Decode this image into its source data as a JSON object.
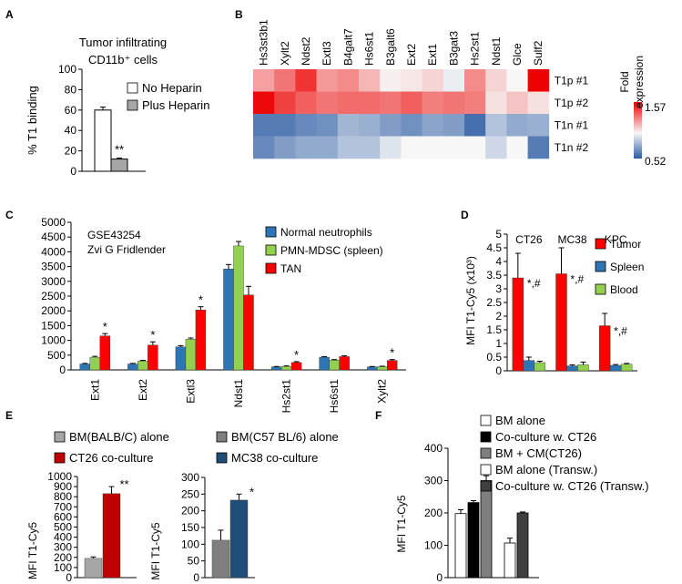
{
  "colors": {
    "white_bar": "#ffffff",
    "gray_bar": "#a6a6a6",
    "blue": "#2e75b6",
    "green": "#92d050",
    "red": "#ff0000",
    "dark_red": "#c00000",
    "dark_gray": "#7f7f7f",
    "navy": "#1f4e79",
    "black": "#000000",
    "dark_gray2": "#404040",
    "heat_low": "#2c5ca3",
    "heat_mid": "#f7f7f7",
    "heat_high": "#ee0000"
  },
  "chart_data": [
    {
      "panel": "A",
      "type": "bar",
      "title": "Tumor infiltrating\nCD11b⁺ cells",
      "ylabel": "% T1 binding",
      "ylim": [
        0,
        100
      ],
      "yticks": [
        0,
        20,
        40,
        60,
        80,
        100
      ],
      "categories": [
        "No Heparin",
        "Plus Heparin"
      ],
      "values": [
        60,
        12
      ],
      "errors": [
        3,
        1
      ],
      "bar_colors": [
        "#ffffff",
        "#a6a6a6"
      ],
      "legend": [
        "No Heparin",
        "Plus Heparin"
      ],
      "annotations": [
        {
          "category": "Plus Heparin",
          "text": "**"
        }
      ]
    },
    {
      "panel": "B",
      "type": "heatmap",
      "columns": [
        "Hs3st3b1",
        "Xylt2",
        "Ndst2",
        "Extl3",
        "B4galt7",
        "Hs6st1",
        "B3galt6",
        "Ext2",
        "Ext1",
        "B3gat3",
        "Hs2st1",
        "Ndst1",
        "Glce",
        "Sulf2"
      ],
      "rows": [
        "T1p #1",
        "T1p #2",
        "T1n #1",
        "T1n #2"
      ],
      "values": [
        [
          1.2,
          1.3,
          1.45,
          1.22,
          1.25,
          1.15,
          1.02,
          1.04,
          1.08,
          0.97,
          1.25,
          1.08,
          1.0,
          1.57
        ],
        [
          1.55,
          1.42,
          1.35,
          1.3,
          1.32,
          1.32,
          1.3,
          1.35,
          1.28,
          1.3,
          1.28,
          1.05,
          1.12,
          1.05
        ],
        [
          0.62,
          0.62,
          0.66,
          0.68,
          0.8,
          0.78,
          0.72,
          0.68,
          0.74,
          0.72,
          0.58,
          0.84,
          0.76,
          0.78
        ],
        [
          0.66,
          0.72,
          0.76,
          0.76,
          0.84,
          0.84,
          0.94,
          1.0,
          1.0,
          1.0,
          1.0,
          0.9,
          1.0,
          0.62
        ]
      ],
      "colorbar": {
        "title": "Fold\nexpression",
        "max_label": "1.57",
        "min_label": "0.52",
        "vmin": 0.52,
        "vmax": 1.57
      }
    },
    {
      "panel": "C",
      "type": "bar",
      "annotation_text": [
        "GSE43254",
        "Zvi G Fridlender"
      ],
      "ylim": [
        0,
        5000
      ],
      "yticks": [
        0,
        500,
        1000,
        1500,
        2000,
        2500,
        3000,
        3500,
        4000,
        4500,
        5000
      ],
      "categories": [
        "Ext1",
        "Ext2",
        "Extl3",
        "Ndst1",
        "Hs2st1",
        "Hs6st1",
        "Xylt2"
      ],
      "series": [
        {
          "name": "Normal neutrophils",
          "color": "#2e75b6",
          "values": [
            200,
            200,
            780,
            3420,
            100,
            430,
            100
          ],
          "errors": [
            20,
            20,
            40,
            150,
            15,
            20,
            15
          ]
        },
        {
          "name": "PMN-MDSC (spleen)",
          "color": "#92d050",
          "values": [
            430,
            300,
            1040,
            4200,
            120,
            330,
            110
          ],
          "errors": [
            30,
            25,
            40,
            150,
            15,
            20,
            15
          ]
        },
        {
          "name": "TAN",
          "color": "#ff0000",
          "values": [
            1150,
            840,
            2030,
            2540,
            250,
            450,
            320
          ],
          "errors": [
            80,
            110,
            110,
            290,
            30,
            30,
            30
          ]
        }
      ],
      "stars": [
        "*",
        "*",
        "*",
        "",
        "*",
        "",
        "*"
      ]
    },
    {
      "panel": "D",
      "type": "bar",
      "ylabel": "MFI T1-Cy5 (x10³)",
      "ylim": [
        0,
        5
      ],
      "yticks": [
        0,
        0.5,
        1,
        1.5,
        2,
        2.5,
        3,
        3.5,
        4,
        4.5,
        5
      ],
      "categories": [
        "CT26",
        "MC38",
        "KPC"
      ],
      "series": [
        {
          "name": "Tumor",
          "color": "#ff0000",
          "values": [
            3.4,
            3.55,
            1.65
          ],
          "errors": [
            0.9,
            0.95,
            0.45
          ]
        },
        {
          "name": "Spleen",
          "color": "#2e75b6",
          "values": [
            0.38,
            0.18,
            0.2
          ],
          "errors": [
            0.12,
            0.04,
            0.03
          ]
        },
        {
          "name": "Blood",
          "color": "#92d050",
          "values": [
            0.3,
            0.22,
            0.24
          ],
          "errors": [
            0.05,
            0.1,
            0.03
          ]
        }
      ],
      "annotations": [
        "*,#",
        "*,#",
        "*,#"
      ]
    },
    {
      "panel": "E1",
      "type": "bar",
      "ylabel": "MFI T1-Cy5",
      "ylim": [
        0,
        1000
      ],
      "yticks": [
        0,
        100,
        200,
        300,
        400,
        500,
        600,
        700,
        800,
        900,
        1000
      ],
      "categories": [
        "BM(BALB/C) alone",
        "CT26 co-culture"
      ],
      "values": [
        190,
        830
      ],
      "errors": [
        15,
        70
      ],
      "bar_colors": [
        "#a6a6a6",
        "#c00000"
      ],
      "legend": [
        "BM(BALB/C) alone",
        "CT26 co-culture"
      ],
      "annotations": [
        {
          "category": "CT26 co-culture",
          "text": "**"
        }
      ]
    },
    {
      "panel": "E2",
      "type": "bar",
      "ylabel": "MFI T1-Cy5",
      "ylim": [
        0,
        300
      ],
      "yticks": [
        0,
        50,
        100,
        150,
        200,
        250,
        300
      ],
      "categories": [
        "BM(C57 BL/6) alone",
        "MC38 co-culture"
      ],
      "values": [
        112,
        232
      ],
      "errors": [
        30,
        18
      ],
      "bar_colors": [
        "#7f7f7f",
        "#1f4e79"
      ],
      "legend": [
        "BM(C57 BL/6) alone",
        "MC38 co-culture"
      ],
      "annotations": [
        {
          "category": "MC38 co-culture",
          "text": "*"
        }
      ]
    },
    {
      "panel": "F",
      "type": "bar",
      "ylabel": "MFI T1-Cy5",
      "ylim": [
        0,
        400
      ],
      "yticks": [
        0,
        100,
        200,
        300,
        400
      ],
      "categories": [
        "BM alone",
        "Co-culture w. CT26",
        "BM + CM(CT26)",
        "BM alone (Transw.)",
        "Co-culture w. CT26 (Transw.)"
      ],
      "values": [
        198,
        232,
        300,
        107,
        200
      ],
      "errors": [
        12,
        6,
        15,
        15,
        3
      ],
      "gaps_before": [
        0,
        0,
        0,
        1,
        0
      ],
      "bar_colors": [
        "#ffffff",
        "#000000",
        "#7f7f7f",
        "#ffffff",
        "#404040"
      ],
      "legend": [
        "BM alone",
        "Co-culture w. CT26",
        "BM + CM(CT26)",
        "BM alone (Transw.)",
        "Co-culture w. CT26 (Transw.)"
      ]
    }
  ],
  "panel_labels": [
    "A",
    "B",
    "C",
    "D",
    "E",
    "F"
  ]
}
